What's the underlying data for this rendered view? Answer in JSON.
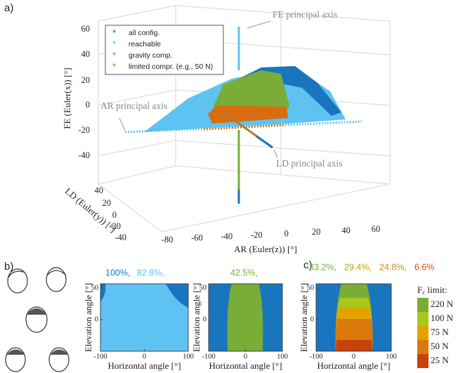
{
  "panel_a": {
    "label": "a)",
    "legend": [
      "all config.",
      "reachable",
      "gravity comp.",
      "limited compr. (e.g., 50 N)"
    ],
    "annotations": {
      "fe": "FE principal axis",
      "ar": "AR principal axis",
      "ld": "LD principal axis"
    },
    "fe_axis": {
      "title": "FE (Euler(x)) [°]",
      "ticks": [
        "60",
        "40",
        "20",
        "0",
        "-20",
        "-40"
      ]
    },
    "ld_axis": {
      "title": "LD (Euler(y)) [°]",
      "ticks": [
        "40",
        "20",
        "0",
        "-20",
        "-40"
      ]
    },
    "ar_axis": {
      "title": "AR (Euler(z)) [°]",
      "ticks": [
        "-80",
        "-60",
        "-40",
        "-20",
        "0",
        "20",
        "40",
        "60"
      ]
    }
  },
  "panel_b": {
    "label": "b)",
    "percentages": [
      "100%,",
      "82.8%,",
      "42.5%,"
    ]
  },
  "panel_c": {
    "label": "c)",
    "percentages": [
      "33.2%,",
      "29.4%,",
      "24.8%,",
      "6.6%"
    ],
    "legend_title": {
      "main": "F",
      "sub": "c",
      "rest": " limit:"
    },
    "levels": [
      "220 N",
      "100 N",
      "75 N",
      "50 N",
      "25 N"
    ]
  },
  "plots": [
    {
      "y_title": "Elevation angle [°]",
      "y_ticks": [
        "50",
        "0"
      ],
      "x_title": "Horizontal angle [°]",
      "x_ticks": [
        "-100",
        "0",
        "100"
      ]
    },
    {
      "y_title": "Elevation angle [°]",
      "y_ticks": [
        "50",
        "0"
      ],
      "x_title": "Horizontal angle [°]",
      "x_ticks": [
        "-100",
        "0",
        "100"
      ]
    },
    {
      "y_title": "Elevation angle [°]",
      "y_ticks": [
        "50",
        "0"
      ],
      "x_title": "Horizontal angle [°]",
      "x_ticks": [
        "-100",
        "0",
        "100"
      ]
    }
  ]
}
